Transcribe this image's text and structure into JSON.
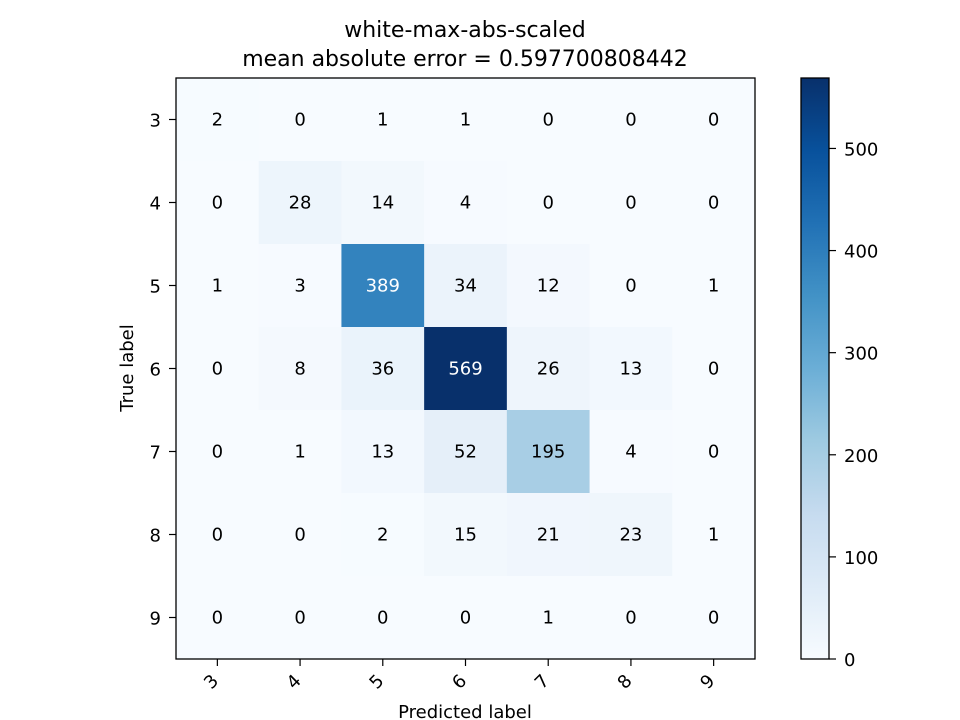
{
  "chart_data": {
    "type": "heatmap",
    "title": "white-max-abs-scaled",
    "subtitle": "mean absolute error = 0.597700808442",
    "xlabel": "Predicted label",
    "ylabel": "True label",
    "x_categories": [
      "3",
      "4",
      "5",
      "6",
      "7",
      "8",
      "9"
    ],
    "y_categories": [
      "3",
      "4",
      "5",
      "6",
      "7",
      "8",
      "9"
    ],
    "values": [
      [
        2,
        0,
        1,
        1,
        0,
        0,
        0
      ],
      [
        0,
        28,
        14,
        4,
        0,
        0,
        0
      ],
      [
        1,
        3,
        389,
        34,
        12,
        0,
        1
      ],
      [
        0,
        8,
        36,
        569,
        26,
        13,
        0
      ],
      [
        0,
        1,
        13,
        52,
        195,
        4,
        0
      ],
      [
        0,
        0,
        2,
        15,
        21,
        23,
        1
      ],
      [
        0,
        0,
        0,
        0,
        1,
        0,
        0
      ]
    ],
    "colormap": "Blues",
    "color_range": [
      0,
      569
    ],
    "colorbar_ticks": [
      0,
      100,
      200,
      300,
      400,
      500
    ],
    "grid": false,
    "colorbar_position": "right"
  }
}
